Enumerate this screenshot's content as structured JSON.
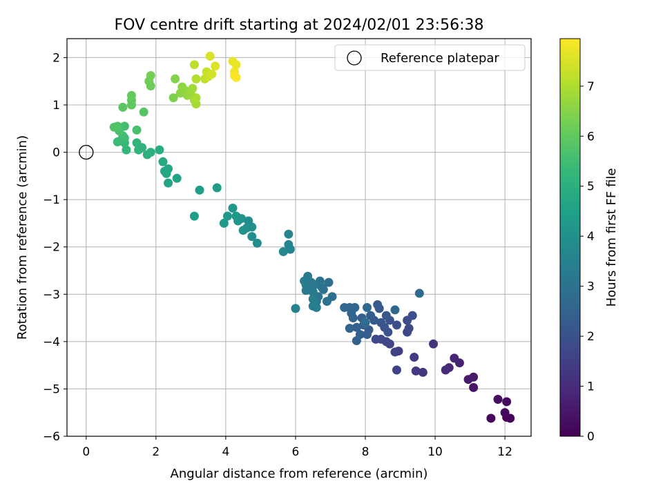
{
  "chart_data": {
    "type": "scatter",
    "title": "FOV centre drift starting at 2024/02/01 23:56:38",
    "xlabel": "Angular distance from reference (arcmin)",
    "ylabel": "Rotation from reference (arcmin)",
    "xlim": [
      -0.55,
      12.75
    ],
    "ylim": [
      -6.0,
      2.4
    ],
    "xticks": [
      0,
      2,
      4,
      6,
      8,
      10,
      12
    ],
    "xtick_labels": [
      "0",
      "2",
      "4",
      "6",
      "8",
      "10",
      "12"
    ],
    "yticks": [
      -6,
      -5,
      -4,
      -3,
      -2,
      -1,
      0,
      1,
      2
    ],
    "ytick_labels": [
      "−6",
      "−5",
      "−4",
      "−3",
      "−2",
      "−1",
      "0",
      "1",
      "2"
    ],
    "grid": true,
    "legend": {
      "position": "top-right",
      "entries": [
        "Reference platepar"
      ]
    },
    "reference_point": {
      "x": 0,
      "y": 0,
      "label": "Reference platepar"
    },
    "colorbar": {
      "label": "Hours from first FF file",
      "colormap": "viridis",
      "range": [
        0,
        7.95
      ],
      "ticks": [
        0,
        1,
        2,
        3,
        4,
        5,
        6,
        7
      ],
      "tick_labels": [
        "0",
        "1",
        "2",
        "3",
        "4",
        "5",
        "6",
        "7"
      ]
    },
    "series": [
      {
        "color_encoding": "hours",
        "points": [
          {
            "x": 12.15,
            "y": -5.62,
            "h": 0.05
          },
          {
            "x": 12.05,
            "y": -5.6,
            "h": 0.1
          },
          {
            "x": 11.6,
            "y": -5.62,
            "h": 0.15
          },
          {
            "x": 12.0,
            "y": -5.5,
            "h": 0.2
          },
          {
            "x": 12.05,
            "y": -5.27,
            "h": 0.25
          },
          {
            "x": 11.8,
            "y": -5.22,
            "h": 0.3
          },
          {
            "x": 11.1,
            "y": -4.97,
            "h": 0.45
          },
          {
            "x": 11.1,
            "y": -4.75,
            "h": 0.55
          },
          {
            "x": 10.95,
            "y": -4.8,
            "h": 0.6
          },
          {
            "x": 10.7,
            "y": -4.45,
            "h": 0.75
          },
          {
            "x": 10.55,
            "y": -4.35,
            "h": 0.85
          },
          {
            "x": 10.4,
            "y": -4.55,
            "h": 0.9
          },
          {
            "x": 10.3,
            "y": -4.6,
            "h": 0.95
          },
          {
            "x": 9.95,
            "y": -4.05,
            "h": 1.2
          },
          {
            "x": 9.65,
            "y": -4.65,
            "h": 1.3
          },
          {
            "x": 9.45,
            "y": -4.62,
            "h": 1.35
          },
          {
            "x": 9.4,
            "y": -4.33,
            "h": 1.4
          },
          {
            "x": 8.95,
            "y": -4.2,
            "h": 1.5
          },
          {
            "x": 8.85,
            "y": -4.22,
            "h": 1.55
          },
          {
            "x": 8.9,
            "y": -4.6,
            "h": 1.55
          },
          {
            "x": 8.7,
            "y": -4.05,
            "h": 1.6
          },
          {
            "x": 8.6,
            "y": -4.0,
            "h": 1.65
          },
          {
            "x": 8.45,
            "y": -3.95,
            "h": 1.7
          },
          {
            "x": 8.3,
            "y": -3.95,
            "h": 1.75
          },
          {
            "x": 9.2,
            "y": -3.8,
            "h": 1.75
          },
          {
            "x": 9.25,
            "y": -3.72,
            "h": 1.8
          },
          {
            "x": 9.2,
            "y": -3.55,
            "h": 1.85
          },
          {
            "x": 9.35,
            "y": -3.45,
            "h": 1.9
          },
          {
            "x": 8.9,
            "y": -3.65,
            "h": 1.95
          },
          {
            "x": 8.7,
            "y": -3.55,
            "h": 2.0
          },
          {
            "x": 8.65,
            "y": -3.8,
            "h": 2.0
          },
          {
            "x": 8.55,
            "y": -3.7,
            "h": 2.05
          },
          {
            "x": 8.45,
            "y": -3.6,
            "h": 2.1
          },
          {
            "x": 8.6,
            "y": -3.45,
            "h": 2.15
          },
          {
            "x": 8.4,
            "y": -3.3,
            "h": 2.2
          },
          {
            "x": 8.35,
            "y": -3.22,
            "h": 2.25
          },
          {
            "x": 8.25,
            "y": -3.55,
            "h": 2.25
          },
          {
            "x": 8.15,
            "y": -3.45,
            "h": 2.3
          },
          {
            "x": 8.1,
            "y": -3.75,
            "h": 2.3
          },
          {
            "x": 8.05,
            "y": -3.85,
            "h": 2.35
          },
          {
            "x": 7.95,
            "y": -3.65,
            "h": 2.35
          },
          {
            "x": 7.9,
            "y": -3.5,
            "h": 2.4
          },
          {
            "x": 7.85,
            "y": -3.85,
            "h": 2.4
          },
          {
            "x": 7.75,
            "y": -3.7,
            "h": 2.45
          },
          {
            "x": 7.75,
            "y": -3.98,
            "h": 2.45
          },
          {
            "x": 7.65,
            "y": -3.5,
            "h": 2.5
          },
          {
            "x": 7.6,
            "y": -3.4,
            "h": 2.55
          },
          {
            "x": 7.55,
            "y": -3.72,
            "h": 2.55
          },
          {
            "x": 7.7,
            "y": -3.28,
            "h": 2.6
          },
          {
            "x": 7.55,
            "y": -3.28,
            "h": 2.6
          },
          {
            "x": 8.05,
            "y": -3.28,
            "h": 2.65
          },
          {
            "x": 7.4,
            "y": -3.28,
            "h": 2.65
          },
          {
            "x": 8.85,
            "y": -3.33,
            "h": 2.7
          },
          {
            "x": 9.55,
            "y": -2.98,
            "h": 2.75
          },
          {
            "x": 8.0,
            "y": -3.6,
            "h": 2.8
          },
          {
            "x": 7.05,
            "y": -3.05,
            "h": 2.85
          },
          {
            "x": 6.95,
            "y": -2.75,
            "h": 2.9
          },
          {
            "x": 6.9,
            "y": -3.15,
            "h": 2.95
          },
          {
            "x": 6.8,
            "y": -2.9,
            "h": 3.0
          },
          {
            "x": 6.75,
            "y": -2.85,
            "h": 3.0
          },
          {
            "x": 6.7,
            "y": -2.72,
            "h": 3.05
          },
          {
            "x": 6.65,
            "y": -3.05,
            "h": 3.1
          },
          {
            "x": 6.6,
            "y": -3.15,
            "h": 3.1
          },
          {
            "x": 6.55,
            "y": -2.8,
            "h": 3.15
          },
          {
            "x": 6.5,
            "y": -2.95,
            "h": 3.2
          },
          {
            "x": 6.45,
            "y": -2.75,
            "h": 3.2
          },
          {
            "x": 6.4,
            "y": -2.9,
            "h": 3.25
          },
          {
            "x": 6.35,
            "y": -2.62,
            "h": 3.25
          },
          {
            "x": 6.3,
            "y": -2.8,
            "h": 3.3
          },
          {
            "x": 6.3,
            "y": -2.92,
            "h": 3.3
          },
          {
            "x": 6.25,
            "y": -2.72,
            "h": 3.35
          },
          {
            "x": 6.6,
            "y": -3.28,
            "h": 3.35
          },
          {
            "x": 6.5,
            "y": -3.25,
            "h": 3.4
          },
          {
            "x": 6.5,
            "y": -3.1,
            "h": 3.4
          },
          {
            "x": 6.0,
            "y": -3.3,
            "h": 3.45
          },
          {
            "x": 5.85,
            "y": -2.05,
            "h": 3.55
          },
          {
            "x": 5.8,
            "y": -1.95,
            "h": 3.6
          },
          {
            "x": 5.8,
            "y": -1.73,
            "h": 3.65
          },
          {
            "x": 5.65,
            "y": -2.1,
            "h": 3.7
          },
          {
            "x": 4.9,
            "y": -1.92,
            "h": 3.85
          },
          {
            "x": 4.75,
            "y": -1.78,
            "h": 3.9
          },
          {
            "x": 4.75,
            "y": -1.58,
            "h": 3.95
          },
          {
            "x": 4.65,
            "y": -1.45,
            "h": 3.95
          },
          {
            "x": 4.6,
            "y": -1.6,
            "h": 4.0
          },
          {
            "x": 4.5,
            "y": -1.65,
            "h": 4.05
          },
          {
            "x": 4.45,
            "y": -1.4,
            "h": 4.05
          },
          {
            "x": 4.35,
            "y": -1.45,
            "h": 4.1
          },
          {
            "x": 4.3,
            "y": -1.35,
            "h": 4.15
          },
          {
            "x": 4.2,
            "y": -1.18,
            "h": 4.2
          },
          {
            "x": 4.05,
            "y": -1.35,
            "h": 4.25
          },
          {
            "x": 3.95,
            "y": -1.5,
            "h": 4.3
          },
          {
            "x": 3.75,
            "y": -0.75,
            "h": 4.35
          },
          {
            "x": 3.25,
            "y": -0.8,
            "h": 4.4
          },
          {
            "x": 3.1,
            "y": -1.35,
            "h": 4.45
          },
          {
            "x": 2.6,
            "y": -0.55,
            "h": 4.55
          },
          {
            "x": 2.35,
            "y": -0.65,
            "h": 4.6
          },
          {
            "x": 2.35,
            "y": -0.35,
            "h": 4.65
          },
          {
            "x": 2.3,
            "y": -0.45,
            "h": 4.7
          },
          {
            "x": 2.25,
            "y": -0.4,
            "h": 4.75
          },
          {
            "x": 2.2,
            "y": -0.2,
            "h": 4.8
          },
          {
            "x": 2.1,
            "y": 0.05,
            "h": 4.9
          },
          {
            "x": 1.85,
            "y": 0.0,
            "h": 5.0
          },
          {
            "x": 1.75,
            "y": -0.05,
            "h": 5.05
          },
          {
            "x": 1.6,
            "y": 0.1,
            "h": 5.1
          },
          {
            "x": 1.5,
            "y": 0.05,
            "h": 5.15
          },
          {
            "x": 1.45,
            "y": 0.2,
            "h": 5.2
          },
          {
            "x": 1.15,
            "y": 0.05,
            "h": 5.25
          },
          {
            "x": 1.1,
            "y": 0.2,
            "h": 5.3
          },
          {
            "x": 1.0,
            "y": 0.25,
            "h": 5.35
          },
          {
            "x": 0.9,
            "y": 0.22,
            "h": 5.4
          },
          {
            "x": 1.1,
            "y": 0.3,
            "h": 5.45
          },
          {
            "x": 1.05,
            "y": 0.35,
            "h": 5.5
          },
          {
            "x": 1.1,
            "y": 0.55,
            "h": 5.55
          },
          {
            "x": 1.45,
            "y": 0.47,
            "h": 5.6
          },
          {
            "x": 0.95,
            "y": 0.45,
            "h": 5.65
          },
          {
            "x": 0.9,
            "y": 0.55,
            "h": 5.7
          },
          {
            "x": 0.8,
            "y": 0.53,
            "h": 5.75
          },
          {
            "x": 1.65,
            "y": 0.85,
            "h": 5.85
          },
          {
            "x": 1.05,
            "y": 0.95,
            "h": 5.9
          },
          {
            "x": 1.3,
            "y": 1.0,
            "h": 5.95
          },
          {
            "x": 1.3,
            "y": 1.1,
            "h": 6.0
          },
          {
            "x": 1.3,
            "y": 1.2,
            "h": 6.05
          },
          {
            "x": 1.85,
            "y": 1.4,
            "h": 6.15
          },
          {
            "x": 1.8,
            "y": 1.5,
            "h": 6.2
          },
          {
            "x": 1.85,
            "y": 1.62,
            "h": 6.25
          },
          {
            "x": 2.5,
            "y": 1.15,
            "h": 6.4
          },
          {
            "x": 2.55,
            "y": 1.55,
            "h": 6.45
          },
          {
            "x": 2.7,
            "y": 1.25,
            "h": 6.55
          },
          {
            "x": 2.75,
            "y": 1.38,
            "h": 6.6
          },
          {
            "x": 2.85,
            "y": 1.3,
            "h": 6.65
          },
          {
            "x": 2.9,
            "y": 1.2,
            "h": 6.7
          },
          {
            "x": 3.0,
            "y": 1.28,
            "h": 6.75
          },
          {
            "x": 3.05,
            "y": 1.35,
            "h": 6.8
          },
          {
            "x": 3.1,
            "y": 1.1,
            "h": 6.85
          },
          {
            "x": 3.15,
            "y": 1.02,
            "h": 6.9
          },
          {
            "x": 3.15,
            "y": 1.15,
            "h": 6.95
          },
          {
            "x": 3.15,
            "y": 1.55,
            "h": 7.05
          },
          {
            "x": 3.1,
            "y": 1.85,
            "h": 7.15
          },
          {
            "x": 3.4,
            "y": 1.55,
            "h": 7.2
          },
          {
            "x": 3.45,
            "y": 1.7,
            "h": 7.3
          },
          {
            "x": 3.5,
            "y": 1.6,
            "h": 7.35
          },
          {
            "x": 3.6,
            "y": 1.65,
            "h": 7.45
          },
          {
            "x": 3.55,
            "y": 2.03,
            "h": 7.5
          },
          {
            "x": 3.7,
            "y": 1.82,
            "h": 7.55
          },
          {
            "x": 4.2,
            "y": 1.92,
            "h": 7.7
          },
          {
            "x": 4.3,
            "y": 1.85,
            "h": 7.75
          },
          {
            "x": 4.25,
            "y": 1.7,
            "h": 7.8
          },
          {
            "x": 4.25,
            "y": 1.62,
            "h": 7.85
          },
          {
            "x": 4.3,
            "y": 1.58,
            "h": 7.9
          }
        ]
      }
    ]
  }
}
